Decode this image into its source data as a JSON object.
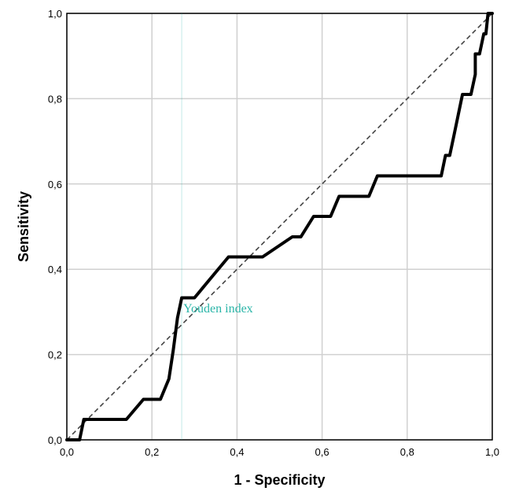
{
  "chart_data": {
    "type": "line",
    "xlabel": "1 - Specificity",
    "ylabel": "Sensitivity",
    "xlim": [
      0,
      1
    ],
    "ylim": [
      0,
      1
    ],
    "x_ticks": [
      "0,0",
      "0,2",
      "0,4",
      "0,6",
      "0,8",
      "1,0"
    ],
    "y_ticks": [
      "0,0",
      "0,2",
      "0,4",
      "0,6",
      "0,8",
      "1,0"
    ],
    "grid": true,
    "series": [
      {
        "style": "solid",
        "points": [
          [
            0.0,
            0.0
          ],
          [
            0.03,
            0.0
          ],
          [
            0.04,
            0.048
          ],
          [
            0.14,
            0.048
          ],
          [
            0.18,
            0.095
          ],
          [
            0.22,
            0.095
          ],
          [
            0.24,
            0.143
          ],
          [
            0.25,
            0.21
          ],
          [
            0.26,
            0.286
          ],
          [
            0.27,
            0.333
          ],
          [
            0.3,
            0.333
          ],
          [
            0.34,
            0.381
          ],
          [
            0.38,
            0.429
          ],
          [
            0.46,
            0.429
          ],
          [
            0.53,
            0.476
          ],
          [
            0.55,
            0.476
          ],
          [
            0.58,
            0.524
          ],
          [
            0.62,
            0.524
          ],
          [
            0.64,
            0.571
          ],
          [
            0.71,
            0.571
          ],
          [
            0.73,
            0.619
          ],
          [
            0.88,
            0.619
          ],
          [
            0.89,
            0.667
          ],
          [
            0.9,
            0.667
          ],
          [
            0.91,
            0.714
          ],
          [
            0.92,
            0.762
          ],
          [
            0.93,
            0.81
          ],
          [
            0.95,
            0.81
          ],
          [
            0.96,
            0.857
          ],
          [
            0.96,
            0.905
          ],
          [
            0.97,
            0.905
          ],
          [
            0.98,
            0.952
          ],
          [
            0.985,
            0.952
          ],
          [
            0.99,
            1.0
          ],
          [
            1.0,
            1.0
          ]
        ]
      },
      {
        "style": "dashed",
        "points": [
          [
            0,
            0
          ],
          [
            1,
            1
          ]
        ]
      }
    ],
    "annotations": [
      {
        "text": "Youden index",
        "x": 0.27,
        "y": 0.31
      }
    ],
    "reference_x": 0.27
  },
  "colors": {
    "annotation": "#2ab5a8",
    "grid": "#d0d0d0",
    "curve": "#000000"
  }
}
